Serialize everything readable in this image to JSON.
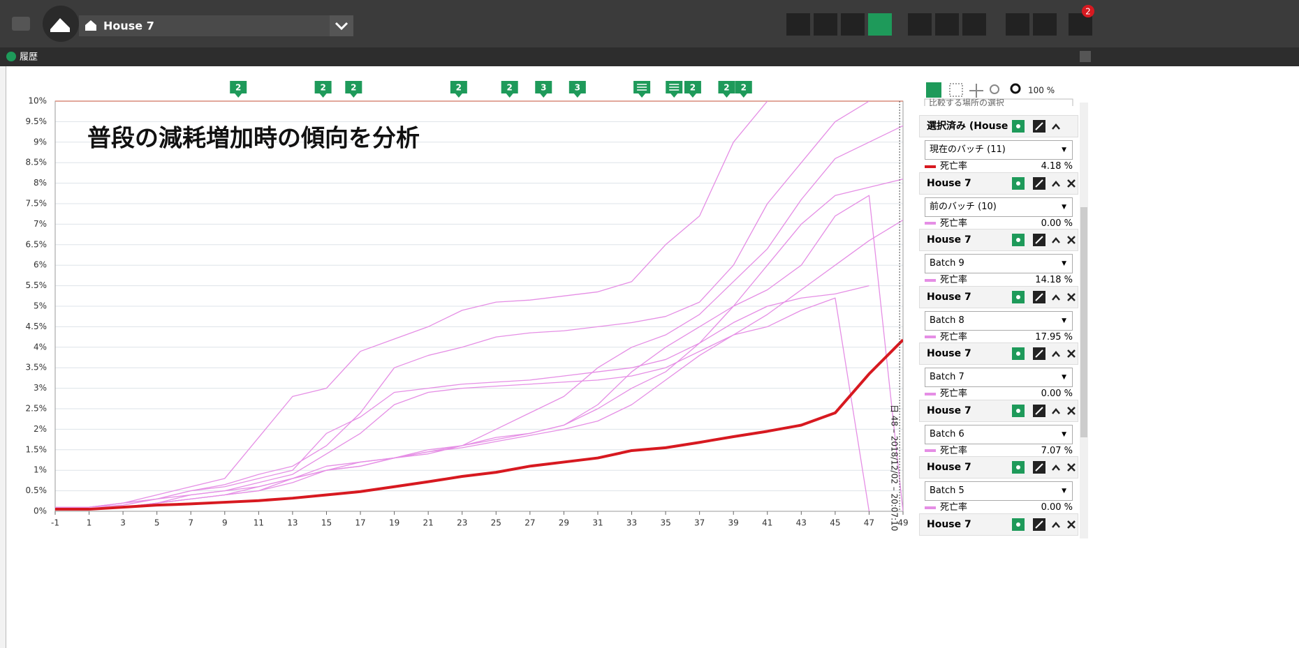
{
  "header": {
    "house": "House 7",
    "notifications": "2",
    "section": "履歴"
  },
  "chart_data": {
    "type": "line",
    "title": "普段の減耗増加時の傾向を分析",
    "x": [
      -1,
      1,
      3,
      5,
      7,
      9,
      11,
      13,
      15,
      17,
      19,
      21,
      23,
      25,
      27,
      29,
      31,
      33,
      35,
      37,
      39,
      41,
      43,
      45,
      47,
      49
    ],
    "xlim": [
      -1,
      49
    ],
    "xticks": [
      -1,
      1,
      3,
      5,
      7,
      9,
      11,
      13,
      15,
      17,
      19,
      21,
      23,
      25,
      27,
      29,
      31,
      33,
      35,
      37,
      39,
      41,
      43,
      45,
      47,
      49
    ],
    "ylim": [
      0,
      10
    ],
    "yticks": [
      {
        "value": 0,
        "label": "0%"
      },
      {
        "value": 0.5,
        "label": "0.5%"
      },
      {
        "value": 1,
        "label": "1%"
      },
      {
        "value": 1.5,
        "label": "1.5%"
      },
      {
        "value": 2,
        "label": "2%"
      },
      {
        "value": 2.5,
        "label": "2.5%"
      },
      {
        "value": 3,
        "label": "3%"
      },
      {
        "value": 3.5,
        "label": "3.5%"
      },
      {
        "value": 4,
        "label": "4%"
      },
      {
        "value": 4.5,
        "label": "4.5%"
      },
      {
        "value": 5,
        "label": "5%"
      },
      {
        "value": 5.5,
        "label": "5.5%"
      },
      {
        "value": 6,
        "label": "6%"
      },
      {
        "value": 6.5,
        "label": "6.5%"
      },
      {
        "value": 7,
        "label": "7%"
      },
      {
        "value": 7.5,
        "label": "7.5%"
      },
      {
        "value": 8,
        "label": "8%"
      },
      {
        "value": 8.5,
        "label": "8.5%"
      },
      {
        "value": 9,
        "label": "9%"
      },
      {
        "value": 9.5,
        "label": "9.5%"
      },
      {
        "value": 10,
        "label": "10%"
      }
    ],
    "grid": true,
    "series": [
      {
        "color": "#e58ee5",
        "values": [
          0.1,
          0.1,
          0.2,
          0.4,
          0.6,
          0.8,
          1.8,
          2.8,
          3.0,
          3.9,
          4.2,
          4.5,
          4.9,
          5.1,
          5.15,
          5.25,
          5.35,
          5.6,
          6.5,
          7.2,
          9.0,
          10,
          null,
          null,
          null,
          null
        ]
      },
      {
        "color": "#e58ee5",
        "values": [
          0.1,
          0.1,
          0.15,
          0.3,
          0.5,
          0.65,
          0.9,
          1.1,
          1.6,
          2.4,
          3.5,
          3.8,
          4.0,
          4.25,
          4.35,
          4.4,
          4.5,
          4.6,
          4.75,
          5.1,
          6.0,
          7.5,
          8.5,
          9.5,
          10,
          null
        ]
      },
      {
        "color": "#e58ee5",
        "values": [
          0.1,
          0.1,
          0.2,
          0.3,
          0.5,
          0.6,
          0.8,
          1.0,
          1.9,
          2.3,
          2.9,
          3.0,
          3.1,
          3.15,
          3.2,
          3.3,
          3.4,
          3.5,
          3.7,
          4.1,
          4.6,
          5.0,
          5.2,
          5.3,
          5.5,
          null
        ]
      },
      {
        "color": "#e58ee5",
        "values": [
          0.1,
          0.1,
          0.2,
          0.3,
          0.4,
          0.5,
          0.7,
          0.9,
          1.4,
          1.9,
          2.6,
          2.9,
          3.0,
          3.05,
          3.1,
          3.15,
          3.2,
          3.3,
          3.5,
          3.9,
          4.3,
          4.5,
          4.9,
          5.2,
          0,
          null
        ]
      },
      {
        "color": "#e58ee5",
        "values": [
          0.05,
          0.05,
          0.1,
          0.2,
          0.4,
          0.5,
          0.6,
          0.8,
          1.0,
          1.2,
          1.3,
          1.4,
          1.6,
          2.0,
          2.4,
          2.8,
          3.5,
          4.0,
          4.3,
          4.8,
          5.6,
          6.4,
          7.6,
          8.6,
          9.0,
          9.4
        ]
      },
      {
        "color": "#e58ee5",
        "values": [
          0.05,
          0.05,
          0.1,
          0.2,
          0.3,
          0.4,
          0.5,
          0.8,
          1.0,
          1.1,
          1.3,
          1.45,
          1.6,
          1.8,
          1.9,
          2.1,
          2.5,
          3.0,
          3.4,
          4.1,
          5.0,
          6.0,
          7.0,
          7.7,
          7.9,
          8.1
        ]
      },
      {
        "color": "#e58ee5",
        "values": [
          0.05,
          0.05,
          0.1,
          0.2,
          0.3,
          0.4,
          0.6,
          0.8,
          1.1,
          1.2,
          1.3,
          1.45,
          1.55,
          1.7,
          1.85,
          2.0,
          2.2,
          2.6,
          3.2,
          3.8,
          4.3,
          4.8,
          5.4,
          6.0,
          6.6,
          7.1
        ]
      },
      {
        "color": "#e58ee5",
        "values": [
          0.05,
          0.05,
          0.1,
          0.2,
          0.3,
          0.4,
          0.5,
          0.7,
          1.0,
          1.1,
          1.3,
          1.5,
          1.6,
          1.75,
          1.9,
          2.1,
          2.6,
          3.4,
          4.0,
          4.5,
          5.0,
          5.4,
          6.0,
          7.2,
          7.7,
          0
        ]
      },
      {
        "color": "#d71920",
        "width": 4,
        "values": [
          0.05,
          0.05,
          0.1,
          0.15,
          0.18,
          0.22,
          0.26,
          0.32,
          0.4,
          0.48,
          0.6,
          0.72,
          0.85,
          0.95,
          1.1,
          1.2,
          1.3,
          1.48,
          1.55,
          1.68,
          1.82,
          1.95,
          2.1,
          2.4,
          3.35,
          4.18
        ]
      }
    ],
    "markers": [
      {
        "x": 9.8,
        "label": "2"
      },
      {
        "x": 14.8,
        "label": "2"
      },
      {
        "x": 16.6,
        "label": "2"
      },
      {
        "x": 22.8,
        "label": "2"
      },
      {
        "x": 25.8,
        "label": "2"
      },
      {
        "x": 27.8,
        "label": "3"
      },
      {
        "x": 29.8,
        "label": "3"
      },
      {
        "x": 33.6
      },
      {
        "x": 35.5
      },
      {
        "x": 36.6,
        "label": "2"
      },
      {
        "x": 38.6,
        "label": "2"
      },
      {
        "x": 39.6,
        "label": "2"
      }
    ],
    "cursor": {
      "x": 48.8,
      "label": "日 48 – 2018/12/02 – 20:07:10"
    }
  },
  "panel": {
    "zoom": "100 %",
    "compare": "比較する場所の選択",
    "entries": [
      {
        "header": "選択済み (House 7)",
        "batch": "現在のバッチ (11)",
        "metric": "死亡率",
        "value": "4.18 %",
        "color": "#d71920"
      },
      {
        "header": "House 7",
        "batch": "前のバッチ (10)",
        "metric": "死亡率",
        "value": "0.00 %",
        "color": "#e58ee5"
      },
      {
        "header": "House 7",
        "batch": "Batch 9",
        "metric": "死亡率",
        "value": "14.18 %",
        "color": "#e58ee5"
      },
      {
        "header": "House 7",
        "batch": "Batch 8",
        "metric": "死亡率",
        "value": "17.95 %",
        "color": "#e58ee5"
      },
      {
        "header": "House 7",
        "batch": "Batch 7",
        "metric": "死亡率",
        "value": "0.00 %",
        "color": "#e58ee5"
      },
      {
        "header": "House 7",
        "batch": "Batch 6",
        "metric": "死亡率",
        "value": "7.07 %",
        "color": "#e58ee5"
      },
      {
        "header": "House 7",
        "batch": "Batch 5",
        "metric": "死亡率",
        "value": "0.00 %",
        "color": "#e58ee5"
      },
      {
        "header": "House 7"
      }
    ]
  }
}
